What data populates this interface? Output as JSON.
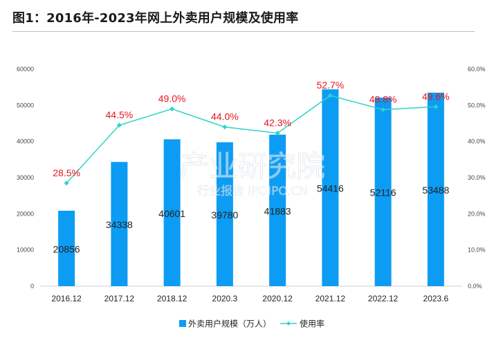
{
  "title": "图1：2016年-2023年网上外卖用户规模及使用率",
  "watermark": {
    "main": "产业研究院",
    "sub": "行业报告 IPOIPO.CN"
  },
  "chart_data": {
    "type": "bar",
    "categories": [
      "2016.12",
      "2017.12",
      "2018.12",
      "2020.3",
      "2020.12",
      "2021.12",
      "2022.12",
      "2023.6"
    ],
    "series": [
      {
        "name": "外卖用户规模（万人）",
        "type": "bar",
        "axis": "left",
        "values": [
          20856,
          34338,
          40601,
          39780,
          41883,
          54416,
          52116,
          53488
        ],
        "labels": [
          "20856",
          "34338",
          "40601",
          "39780",
          "41883",
          "54416",
          "52116",
          "53488"
        ],
        "color": "#0c9cf3"
      },
      {
        "name": "使用率",
        "type": "line",
        "axis": "right",
        "values": [
          28.5,
          44.5,
          49.0,
          44.0,
          42.3,
          52.7,
          48.8,
          49.6
        ],
        "labels": [
          "28.5%",
          "44.5%",
          "49.0%",
          "44.0%",
          "42.3%",
          "52.7%",
          "48.8%",
          "49.6%"
        ],
        "color": "#2ed3c6",
        "label_color": "#e8141c"
      }
    ],
    "y_left": {
      "range": [
        0,
        60000
      ],
      "ticks": [
        "0",
        "10000",
        "20000",
        "30000",
        "40000",
        "50000",
        "60000"
      ]
    },
    "y_right": {
      "range": [
        0,
        60
      ],
      "ticks": [
        "0.0%",
        "10.0%",
        "20.0%",
        "30.0%",
        "40.0%",
        "50.0%",
        "60.0%"
      ]
    },
    "grid": false,
    "legend_position": "bottom-center"
  }
}
